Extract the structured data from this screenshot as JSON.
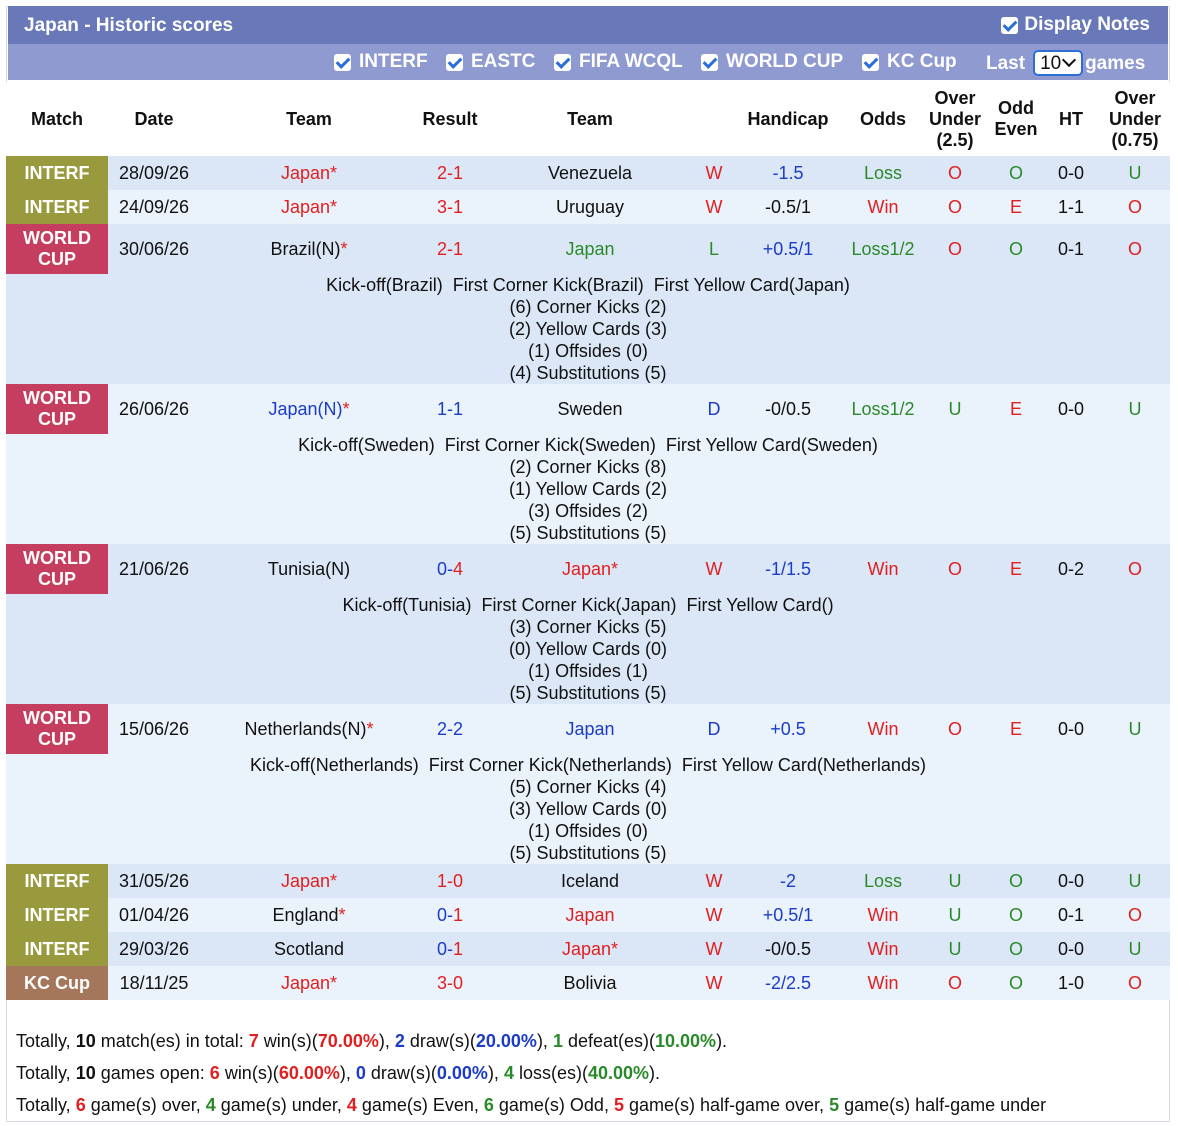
{
  "header": {
    "title": "Japan - Historic scores",
    "display_notes": "Display Notes"
  },
  "filters": {
    "items": [
      "INTERF",
      "EASTC",
      "FIFA WCQL",
      "WORLD CUP",
      "KC Cup"
    ],
    "last_label": "Last",
    "last_value": "10",
    "games_label": "games"
  },
  "columns": {
    "match": "Match",
    "date": "Date",
    "team1": "Team",
    "result": "Result",
    "team2": "Team",
    "handicap": "Handicap",
    "odds": "Odds",
    "ou_l1": "Over",
    "ou_l2": "Under",
    "ou_l3": "(2.5)",
    "oe_l1": "Odd",
    "oe_l2": "Even",
    "ht": "HT",
    "ou2_l1": "Over",
    "ou2_l2": "Under",
    "ou2_l3": "(0.75)"
  },
  "matches": [
    {
      "comp": "INTERF",
      "date": "28/09/26",
      "home": "Japan*",
      "score_h": "2",
      "score_a": "1",
      "away": "Venezuela",
      "wl": "W",
      "handicap": "-1.5",
      "odds": "Loss",
      "ou": "O",
      "oe": "O",
      "ht": "0-0",
      "ou2": "U"
    },
    {
      "comp": "INTERF",
      "date": "24/09/26",
      "home": "Japan*",
      "score_h": "3",
      "score_a": "1",
      "away": "Uruguay",
      "wl": "W",
      "handicap": "-0.5/1",
      "odds": "Win",
      "ou": "O",
      "oe": "E",
      "ht": "1-1",
      "ou2": "O"
    },
    {
      "comp_l1": "WORLD",
      "comp_l2": "CUP",
      "date": "30/06/26",
      "home": "Brazil(N)",
      "home_star": "*",
      "score_h": "2",
      "score_a": "1",
      "away": "Japan",
      "wl": "L",
      "handicap": "+0.5/1",
      "odds": "Loss1/2",
      "ou": "O",
      "oe": "O",
      "ht": "0-1",
      "ou2": "O",
      "details": [
        "Kick-off(Brazil)  First Corner Kick(Brazil)  First Yellow Card(Japan)",
        "(6) Corner Kicks (2)",
        "(2) Yellow Cards (3)",
        "(1) Offsides (0)",
        "(4) Substitutions (5)"
      ]
    },
    {
      "comp_l1": "WORLD",
      "comp_l2": "CUP",
      "date": "26/06/26",
      "home": "Japan(N)",
      "home_star": "*",
      "score_h": "1",
      "score_a": "1",
      "away": "Sweden",
      "wl": "D",
      "handicap": "-0/0.5",
      "odds": "Loss1/2",
      "ou": "U",
      "oe": "E",
      "ht": "0-0",
      "ou2": "U",
      "details": [
        "Kick-off(Sweden)  First Corner Kick(Sweden)  First Yellow Card(Sweden)",
        "(2) Corner Kicks (8)",
        "(1) Yellow Cards (2)",
        "(3) Offsides (2)",
        "(5) Substitutions (5)"
      ]
    },
    {
      "comp_l1": "WORLD",
      "comp_l2": "CUP",
      "date": "21/06/26",
      "home": "Tunisia(N)",
      "score_h": "0",
      "score_a": "4",
      "away": "Japan*",
      "wl": "W",
      "handicap": "-1/1.5",
      "odds": "Win",
      "ou": "O",
      "oe": "E",
      "ht": "0-2",
      "ou2": "O",
      "details": [
        "Kick-off(Tunisia)  First Corner Kick(Japan)  First Yellow Card()",
        "(3) Corner Kicks (5)",
        "(0) Yellow Cards (0)",
        "(1) Offsides (1)",
        "(5) Substitutions (5)"
      ]
    },
    {
      "comp_l1": "WORLD",
      "comp_l2": "CUP",
      "date": "15/06/26",
      "home": "Netherlands(N)",
      "home_star": "*",
      "score_h": "2",
      "score_a": "2",
      "away": "Japan",
      "wl": "D",
      "handicap": "+0.5",
      "odds": "Win",
      "ou": "O",
      "oe": "E",
      "ht": "0-0",
      "ou2": "U",
      "details": [
        "Kick-off(Netherlands)  First Corner Kick(Netherlands)  First Yellow Card(Netherlands)",
        "(5) Corner Kicks (4)",
        "(3) Yellow Cards (0)",
        "(1) Offsides (0)",
        "(5) Substitutions (5)"
      ]
    },
    {
      "comp": "INTERF",
      "date": "31/05/26",
      "home": "Japan*",
      "score_h": "1",
      "score_a": "0",
      "away": "Iceland",
      "wl": "W",
      "handicap": "-2",
      "odds": "Loss",
      "ou": "U",
      "oe": "O",
      "ht": "0-0",
      "ou2": "U"
    },
    {
      "comp": "INTERF",
      "date": "01/04/26",
      "home": "England",
      "home_star": "*",
      "score_h": "0",
      "score_a": "1",
      "away": "Japan",
      "wl": "W",
      "handicap": "+0.5/1",
      "odds": "Win",
      "ou": "U",
      "oe": "O",
      "ht": "0-1",
      "ou2": "O"
    },
    {
      "comp": "INTERF",
      "date": "29/03/26",
      "home": "Scotland",
      "score_h": "0",
      "score_a": "1",
      "away": "Japan*",
      "wl": "W",
      "handicap": "-0/0.5",
      "odds": "Win",
      "ou": "U",
      "oe": "O",
      "ht": "0-0",
      "ou2": "U"
    },
    {
      "comp": "KC Cup",
      "date": "18/11/25",
      "home": "Japan*",
      "score_h": "3",
      "score_a": "0",
      "away": "Bolivia",
      "wl": "W",
      "handicap": "-2/2.5",
      "odds": "Win",
      "ou": "O",
      "oe": "O",
      "ht": "1-0",
      "ou2": "O"
    }
  ],
  "summary": {
    "line1": {
      "a": "Totally, ",
      "n": "10",
      "b": " match(es) in total: ",
      "w": "7",
      "c": " win(s)(",
      "wp": "70.00%",
      "d": "), ",
      "dr": "2",
      "e": " draw(s)(",
      "drp": "20.00%",
      "f": "), ",
      "l": "1",
      "g": " defeat(es)(",
      "lp": "10.00%",
      "h": ")."
    },
    "line2": {
      "a": "Totally, ",
      "n": "10",
      "b": " games open: ",
      "w": "6",
      "c": " win(s)(",
      "wp": "60.00%",
      "d": "), ",
      "dr": "0",
      "e": " draw(s)(",
      "drp": "0.00%",
      "f": "), ",
      "l": "4",
      "g": " loss(es)(",
      "lp": "40.00%",
      "h": ")."
    },
    "line3": {
      "a": "Totally, ",
      "o": "6",
      "b": " game(s) over, ",
      "u": "4",
      "c": " game(s) under, ",
      "ev": "4",
      "d": " game(s) Even, ",
      "od": "6",
      "e": " game(s) Odd, ",
      "ho": "5",
      "f": " game(s) half-game over, ",
      "hu": "5",
      "g": " game(s) half-game under"
    }
  }
}
